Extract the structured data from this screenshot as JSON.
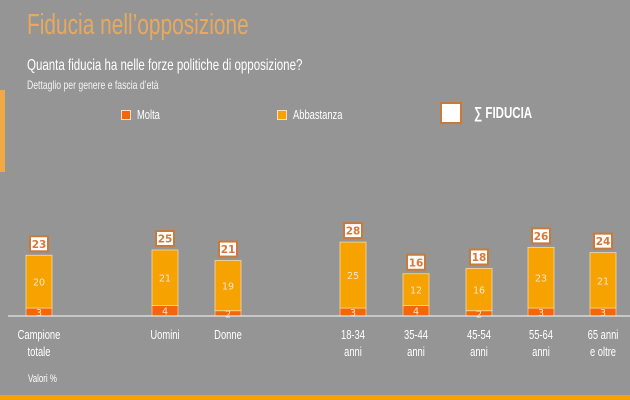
{
  "header": {
    "title": "Fiducia nell’opposizione",
    "subtitle": "Quanta fiducia ha nelle forze politiche di opposizione?",
    "detail": "Dettaglio per genere e fascia d’età"
  },
  "legend": {
    "molta": "Molta",
    "abbastanza": "Abbastanza",
    "total": "∑ FIDUCIA"
  },
  "footer_note": "Valori %",
  "colors": {
    "background": "#959595",
    "molta": "#f5650a",
    "abbastanza": "#f6a200",
    "title": "#e8a95e",
    "total_box_border": "#c87a3a",
    "total_text": "#d9773a",
    "accent_bar": "#f6a200"
  },
  "chart_data": {
    "type": "bar",
    "stacked": true,
    "title": "Quanta fiducia ha nelle forze politiche di opposizione?",
    "subtitle": "Dettaglio per genere e fascia d’età",
    "xlabel": "",
    "ylabel": "Valori %",
    "categories": [
      [
        "Campione",
        "totale"
      ],
      [
        "Uomini"
      ],
      [
        "Donne"
      ],
      [
        "18-34",
        "anni"
      ],
      [
        "35-44",
        "anni"
      ],
      [
        "45-54",
        "anni"
      ],
      [
        "55-64",
        "anni"
      ],
      [
        "65 anni",
        "e oltre"
      ]
    ],
    "series": [
      {
        "name": "Molta",
        "values": [
          3,
          4,
          2,
          3,
          4,
          2,
          3,
          3
        ]
      },
      {
        "name": "Abbastanza",
        "values": [
          20,
          21,
          19,
          25,
          12,
          16,
          23,
          21
        ]
      }
    ],
    "totals": [
      23,
      25,
      21,
      28,
      16,
      18,
      26,
      24
    ],
    "legend_position": "top",
    "grid": false,
    "ylim": [
      0,
      30
    ]
  }
}
